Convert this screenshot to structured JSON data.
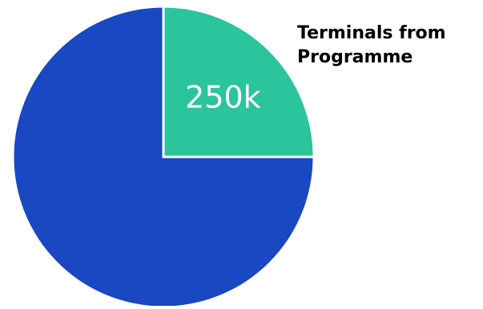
{
  "chart_data": {
    "type": "pie",
    "title_lines": [
      "Terminals from",
      "Programme"
    ],
    "slices": [
      {
        "value": 250000,
        "label": "250k",
        "color": "#2bc49c"
      },
      {
        "value": 750000,
        "label": "",
        "color": "#1a47c2"
      }
    ],
    "start_angle_deg": 0,
    "direction": "clockwise"
  }
}
